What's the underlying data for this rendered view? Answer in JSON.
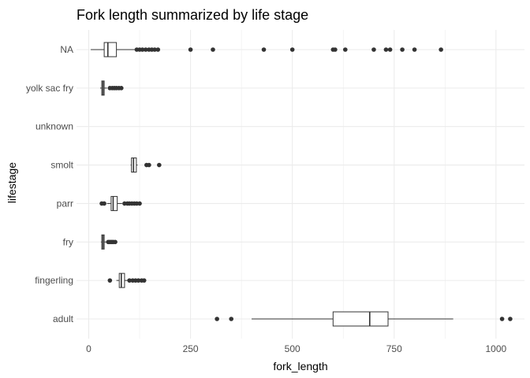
{
  "chart_data": {
    "type": "boxplot",
    "orientation": "horizontal",
    "title": "Fork length summarized by life stage",
    "xlabel": "fork_length",
    "ylabel": "lifestage",
    "xlim": [
      -30,
      1070
    ],
    "x_ticks": [
      0,
      250,
      500,
      750,
      1000
    ],
    "x_tick_labels": [
      "0",
      "250",
      "500",
      "750",
      "1000"
    ],
    "grid": true,
    "categories": [
      "NA",
      "yolk sac fry",
      "unknown",
      "smolt",
      "parr",
      "fry",
      "fingerling",
      "adult"
    ],
    "boxes": [
      {
        "category": "NA",
        "whisker_low": 5,
        "q1": 38,
        "median": 47,
        "q3": 68,
        "whisker_high": 115,
        "outliers": [
          118,
          125,
          132,
          140,
          148,
          155,
          162,
          170,
          250,
          305,
          430,
          500,
          600,
          605,
          630,
          700,
          730,
          740,
          770,
          800,
          865
        ]
      },
      {
        "category": "yolk sac fry",
        "whisker_low": 28,
        "q1": 32,
        "median": 35,
        "q3": 38,
        "whisker_high": 45,
        "outliers": [
          52,
          58,
          63,
          68,
          74,
          80
        ]
      },
      {
        "category": "unknown",
        "empty": true
      },
      {
        "category": "smolt",
        "whisker_low": 103,
        "q1": 105,
        "median": 110,
        "q3": 117,
        "whisker_high": 120,
        "outliers": [
          142,
          148,
          173
        ]
      },
      {
        "category": "parr",
        "whisker_low": 45,
        "q1": 55,
        "median": 60,
        "q3": 70,
        "whisker_high": 82,
        "outliers": [
          32,
          38,
          88,
          95,
          100,
          106,
          112,
          118,
          125
        ]
      },
      {
        "category": "fry",
        "whisker_low": 30,
        "q1": 32,
        "median": 35,
        "q3": 38,
        "whisker_high": 44,
        "outliers": [
          48,
          52,
          56,
          60,
          65
        ]
      },
      {
        "category": "fingerling",
        "whisker_low": 68,
        "q1": 75,
        "median": 80,
        "q3": 88,
        "whisker_high": 96,
        "outliers": [
          52,
          100,
          108,
          115,
          122,
          130,
          136
        ]
      },
      {
        "category": "adult",
        "whisker_low": 400,
        "q1": 600,
        "median": 690,
        "q3": 735,
        "whisker_high": 895,
        "outliers": [
          315,
          350,
          1015,
          1035
        ]
      }
    ]
  }
}
